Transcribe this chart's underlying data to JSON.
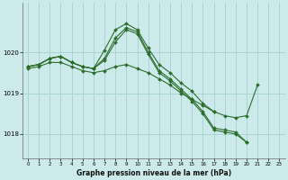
{
  "title": "Graphe pression niveau de la mer (hPa)",
  "background_color": "#cceaea",
  "grid_color": "#aad4d4",
  "line_color": "#2d6e2d",
  "marker_color": "#2d6e2d",
  "x_ticks": [
    0,
    1,
    2,
    3,
    4,
    5,
    6,
    7,
    8,
    9,
    10,
    11,
    12,
    13,
    14,
    15,
    16,
    17,
    18,
    19,
    20,
    21,
    22,
    23
  ],
  "y_ticks": [
    1018,
    1019,
    1020
  ],
  "ylim": [
    1017.4,
    1021.2
  ],
  "xlim": [
    -0.5,
    23.5
  ],
  "series": [
    [
      1019.65,
      1019.7,
      1019.85,
      1019.9,
      1019.75,
      1019.65,
      1019.6,
      1020.05,
      1020.55,
      1020.7,
      1020.55,
      1020.1,
      1019.7,
      1019.5,
      1019.25,
      1019.05,
      1018.75,
      1018.55,
      null,
      null,
      null,
      null,
      null,
      null
    ],
    [
      1019.65,
      1019.7,
      1019.85,
      1019.9,
      1019.75,
      1019.65,
      1019.6,
      1019.85,
      1020.35,
      1020.6,
      1020.5,
      1020.0,
      1019.55,
      1019.35,
      1019.1,
      1018.85,
      1018.55,
      1018.15,
      1018.1,
      1018.05,
      1017.8,
      null,
      null,
      null
    ],
    [
      1019.65,
      1019.7,
      1019.85,
      1019.9,
      1019.75,
      1019.65,
      1019.6,
      1019.8,
      1020.25,
      1020.55,
      1020.45,
      1019.95,
      1019.5,
      1019.3,
      1019.05,
      1018.8,
      1018.5,
      1018.1,
      1018.05,
      1018.0,
      1017.8,
      null,
      null,
      null
    ],
    [
      1019.6,
      1019.65,
      1019.75,
      1019.75,
      1019.65,
      1019.55,
      1019.5,
      1019.55,
      1019.65,
      1019.7,
      1019.6,
      1019.5,
      1019.35,
      1019.2,
      1019.0,
      1018.85,
      1018.7,
      1018.55,
      1018.45,
      1018.4,
      1018.45,
      1019.2,
      null,
      null
    ]
  ]
}
